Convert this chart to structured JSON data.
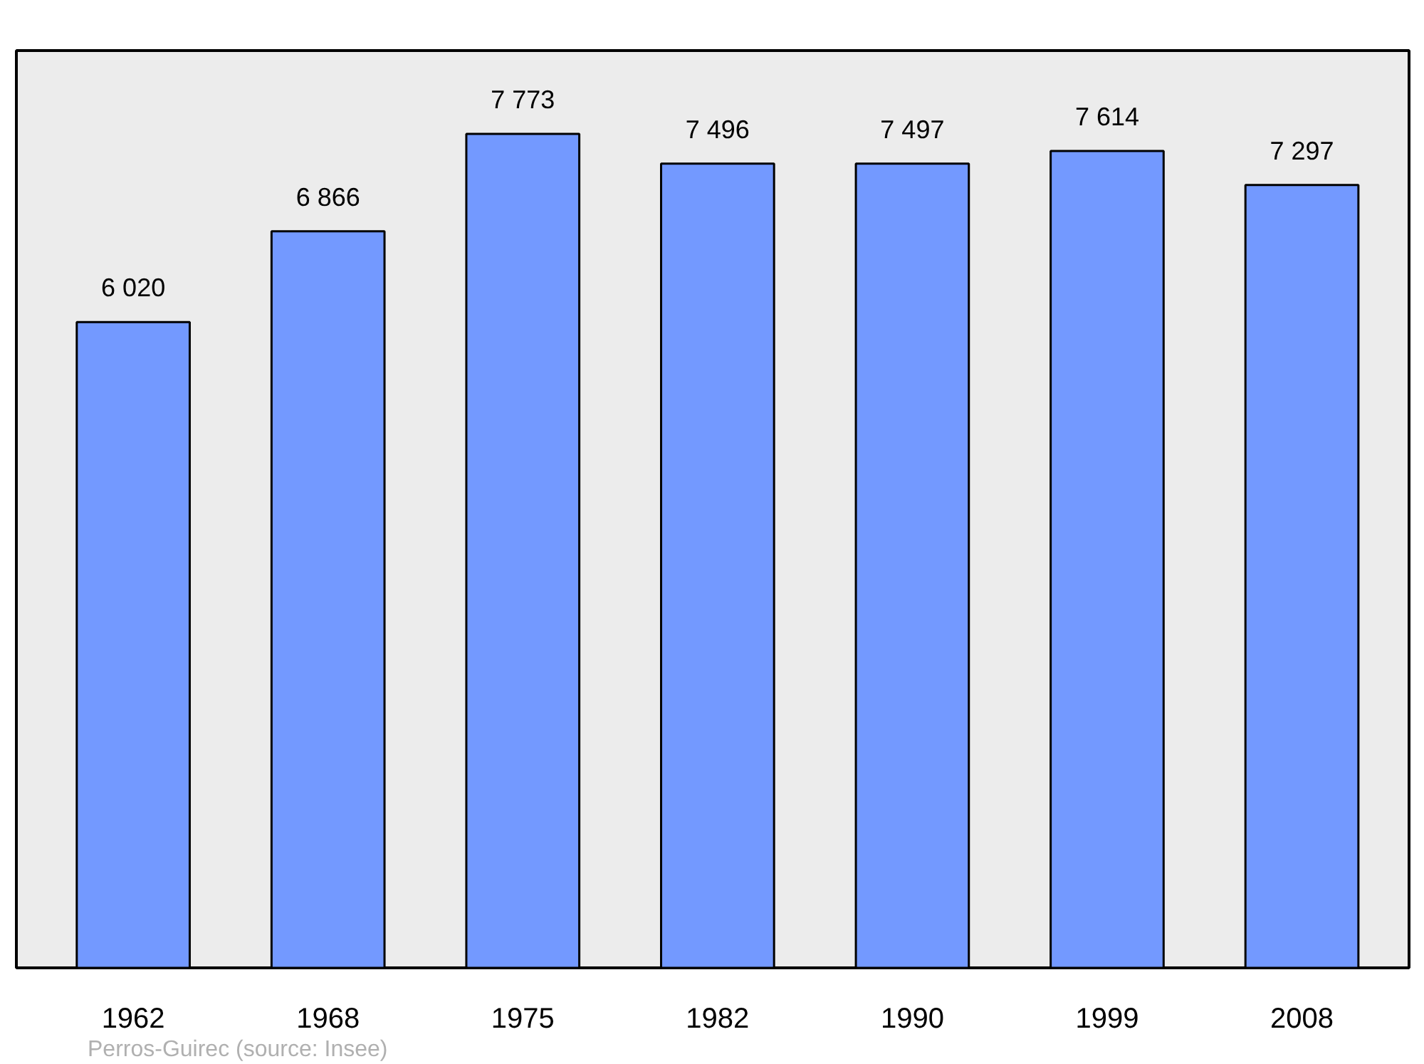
{
  "chart_data": {
    "type": "bar",
    "categories": [
      "1962",
      "1968",
      "1975",
      "1982",
      "1990",
      "1999",
      "2008"
    ],
    "values": [
      6020,
      6866,
      7773,
      7496,
      7497,
      7614,
      7297
    ],
    "color": "#7399ff",
    "ylim": [
      0,
      8550
    ],
    "tick_labels": "x",
    "data_labels": true,
    "grid": false,
    "annotations": [
      "Perros-Guirec  (source: Insee)"
    ]
  }
}
